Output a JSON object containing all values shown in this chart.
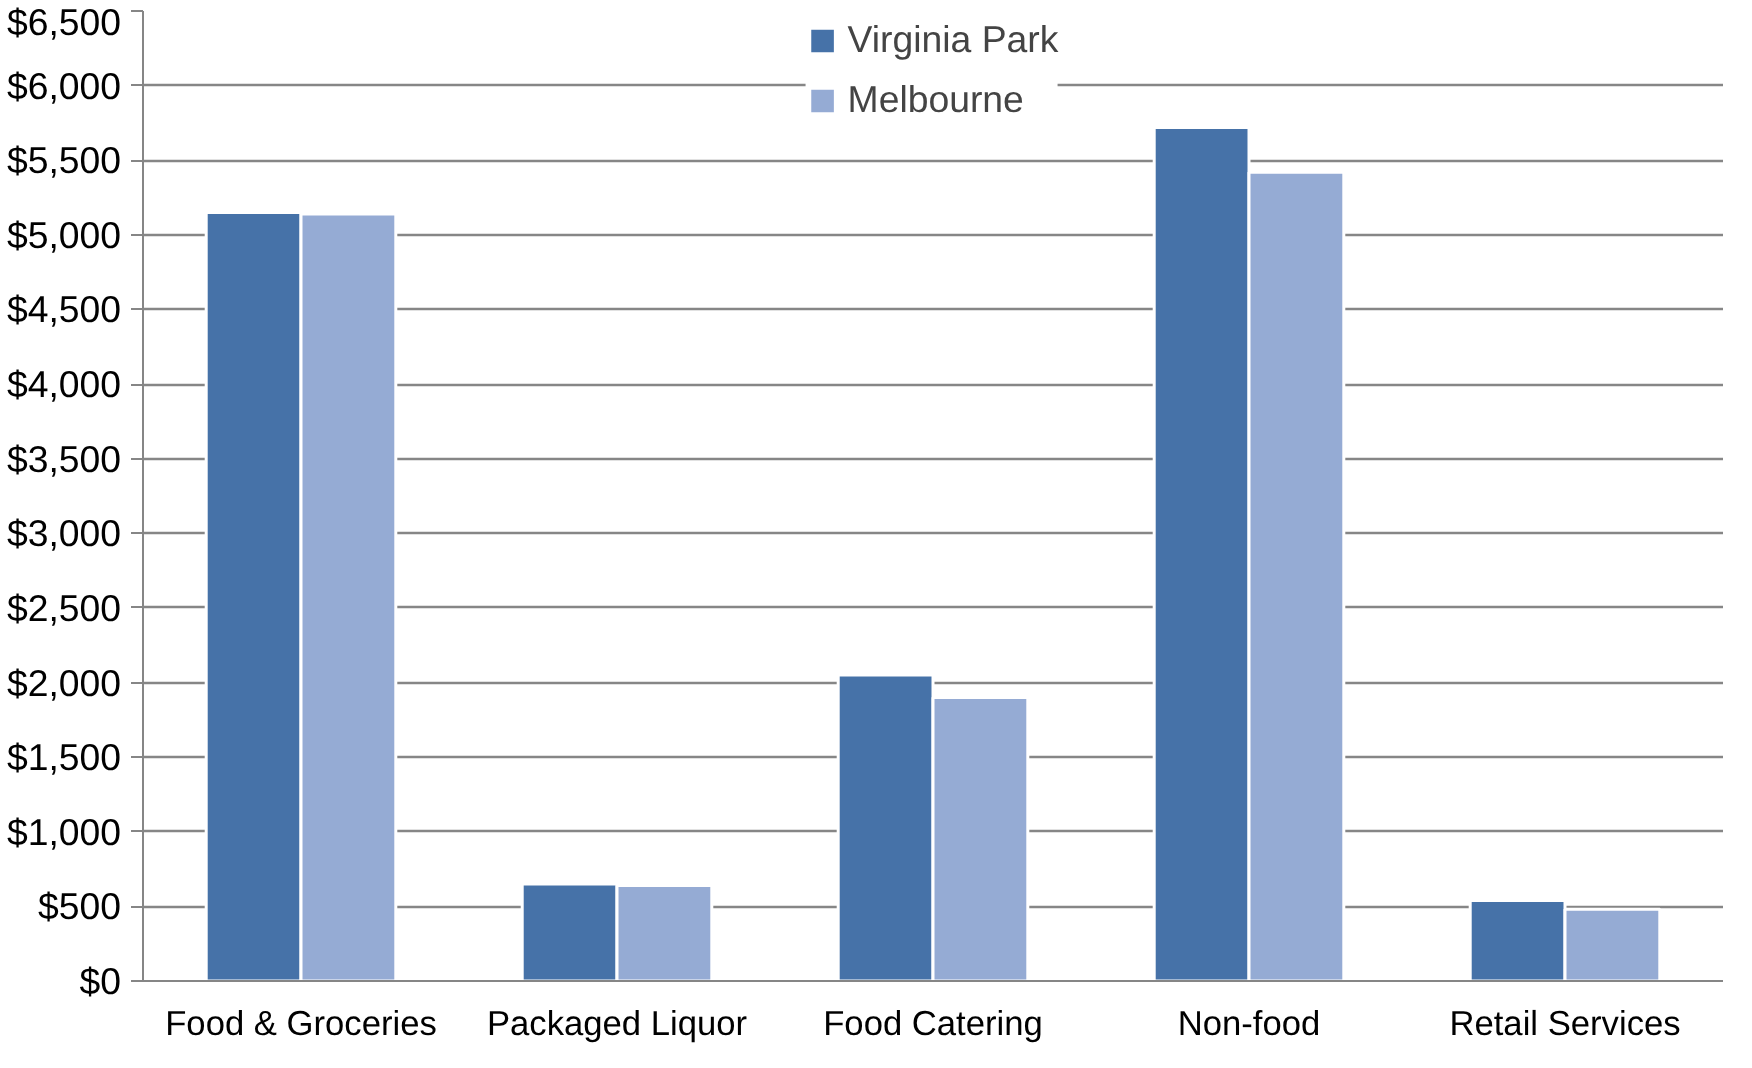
{
  "chart_data": {
    "type": "bar",
    "categories": [
      "Food & Groceries",
      "Packaged Liquor",
      "Food Catering",
      "Non-food",
      "Retail Services"
    ],
    "series": [
      {
        "name": "Virginia Park",
        "color": "#4672a8",
        "values": [
          5150,
          650,
          2050,
          5720,
          540
        ]
      },
      {
        "name": "Melbourne",
        "color": "#95abd4",
        "values": [
          5140,
          640,
          1900,
          5420,
          480
        ]
      }
    ],
    "ylim": [
      0,
      6500
    ],
    "yticks": [
      {
        "value": 0,
        "label": "$0"
      },
      {
        "value": 500,
        "label": "$500"
      },
      {
        "value": 1000,
        "label": "$1,000"
      },
      {
        "value": 1500,
        "label": "$1,500"
      },
      {
        "value": 2000,
        "label": "$2,000"
      },
      {
        "value": 2500,
        "label": "$2,500"
      },
      {
        "value": 3000,
        "label": "$3,000"
      },
      {
        "value": 3500,
        "label": "$3,500"
      },
      {
        "value": 4000,
        "label": "$4,000"
      },
      {
        "value": 4500,
        "label": "$4,500"
      },
      {
        "value": 5000,
        "label": "$5,000"
      },
      {
        "value": 5500,
        "label": "$5,500"
      },
      {
        "value": 6000,
        "label": "$6,000"
      },
      {
        "value": 6500,
        "label": "$6,500"
      }
    ],
    "grid": "y",
    "legend": "top"
  }
}
